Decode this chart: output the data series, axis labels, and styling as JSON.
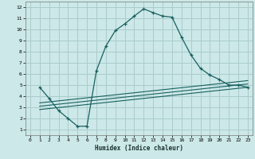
{
  "xlabel": "Humidex (Indice chaleur)",
  "ylabel": "",
  "background_color": "#cce8e8",
  "grid_color": "#aacccc",
  "line_color": "#1a6060",
  "xlim": [
    -0.5,
    23.5
  ],
  "ylim": [
    0.5,
    12.5
  ],
  "xticks": [
    0,
    1,
    2,
    3,
    4,
    5,
    6,
    7,
    8,
    9,
    10,
    11,
    12,
    13,
    14,
    15,
    16,
    17,
    18,
    19,
    20,
    21,
    22,
    23
  ],
  "yticks": [
    1,
    2,
    3,
    4,
    5,
    6,
    7,
    8,
    9,
    10,
    11,
    12
  ],
  "curve1_x": [
    1,
    2,
    3,
    4,
    5,
    6,
    7,
    8,
    9,
    10,
    11,
    12,
    13,
    14,
    15,
    16,
    17,
    18,
    19,
    20,
    21,
    22,
    23
  ],
  "curve1_y": [
    4.8,
    3.8,
    2.7,
    2.0,
    1.3,
    1.3,
    6.3,
    8.5,
    9.9,
    10.5,
    11.2,
    11.85,
    11.5,
    11.2,
    11.1,
    9.3,
    7.7,
    6.5,
    5.9,
    5.5,
    5.0,
    5.0,
    4.8
  ],
  "line1_x": [
    1,
    23
  ],
  "line1_y": [
    2.8,
    4.8
  ],
  "line2_x": [
    1,
    23
  ],
  "line2_y": [
    3.1,
    5.1
  ],
  "line3_x": [
    1,
    23
  ],
  "line3_y": [
    3.4,
    5.4
  ]
}
